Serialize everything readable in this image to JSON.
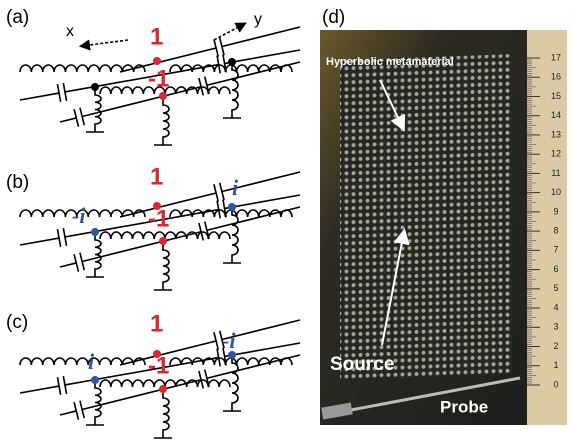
{
  "panels": [
    {
      "label": "(a)",
      "axes": [
        "x",
        "y"
      ],
      "node_labels": [
        "1",
        "-1"
      ]
    },
    {
      "label": "(b)",
      "node_labels": [
        "1",
        "-1",
        "-i",
        "i"
      ]
    },
    {
      "label": "(c)",
      "node_labels": [
        "1",
        "-1",
        "i",
        "-i"
      ]
    },
    {
      "label": "(d)",
      "annotations": [
        "Hyperbolic metamaterial",
        "Source",
        "Probe"
      ],
      "ruler_ticks": [
        0,
        1,
        2,
        3,
        4,
        5,
        6,
        7,
        8,
        9,
        10,
        11,
        12,
        13,
        14,
        15,
        16,
        17
      ]
    }
  ]
}
